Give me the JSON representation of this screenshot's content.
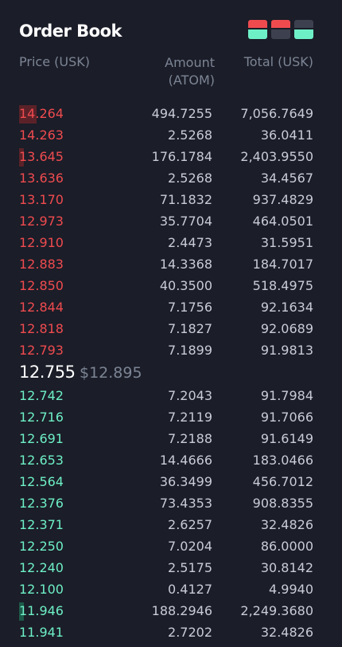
{
  "title": "Order Book",
  "view_toggles": [
    {
      "name": "both-sides",
      "icon": "orderbook-both-icon"
    },
    {
      "name": "asks-only",
      "icon": "orderbook-asks-icon"
    },
    {
      "name": "bids-only",
      "icon": "orderbook-bids-icon"
    }
  ],
  "columns": {
    "price": "Price (USK)",
    "amount": "Amount",
    "amount_unit": "(ATOM)",
    "total": "Total (USK)"
  },
  "colors": {
    "ask": "#ef4b4f",
    "bid": "#6ef0c6",
    "background": "#1b1d28"
  },
  "asks": [
    {
      "price": "14.264",
      "amount": "494.7255",
      "total": "7,056.7649",
      "depth": 0.06
    },
    {
      "price": "14.263",
      "amount": "2.5268",
      "total": "36.0411",
      "depth": 0
    },
    {
      "price": "13.645",
      "amount": "176.1784",
      "total": "2,403.9550",
      "depth": 0.015
    },
    {
      "price": "13.636",
      "amount": "2.5268",
      "total": "34.4567",
      "depth": 0
    },
    {
      "price": "13.170",
      "amount": "71.1832",
      "total": "937.4829",
      "depth": 0
    },
    {
      "price": "12.973",
      "amount": "35.7704",
      "total": "464.0501",
      "depth": 0
    },
    {
      "price": "12.910",
      "amount": "2.4473",
      "total": "31.5951",
      "depth": 0
    },
    {
      "price": "12.883",
      "amount": "14.3368",
      "total": "184.7017",
      "depth": 0
    },
    {
      "price": "12.850",
      "amount": "40.3500",
      "total": "518.4975",
      "depth": 0
    },
    {
      "price": "12.844",
      "amount": "7.1756",
      "total": "92.1634",
      "depth": 0
    },
    {
      "price": "12.818",
      "amount": "7.1827",
      "total": "92.0689",
      "depth": 0
    },
    {
      "price": "12.793",
      "amount": "7.1899",
      "total": "91.9813",
      "depth": 0
    }
  ],
  "last_price": "12.755",
  "last_price_usd": "$12.895",
  "bids": [
    {
      "price": "12.742",
      "amount": "7.2043",
      "total": "91.7984",
      "depth": 0
    },
    {
      "price": "12.716",
      "amount": "7.2119",
      "total": "91.7066",
      "depth": 0
    },
    {
      "price": "12.691",
      "amount": "7.2188",
      "total": "91.6149",
      "depth": 0
    },
    {
      "price": "12.653",
      "amount": "14.4666",
      "total": "183.0466",
      "depth": 0
    },
    {
      "price": "12.564",
      "amount": "36.3499",
      "total": "456.7012",
      "depth": 0
    },
    {
      "price": "12.376",
      "amount": "73.4353",
      "total": "908.8355",
      "depth": 0
    },
    {
      "price": "12.371",
      "amount": "2.6257",
      "total": "32.4826",
      "depth": 0
    },
    {
      "price": "12.250",
      "amount": "7.0204",
      "total": "86.0000",
      "depth": 0
    },
    {
      "price": "12.240",
      "amount": "2.5175",
      "total": "30.8142",
      "depth": 0
    },
    {
      "price": "12.100",
      "amount": "0.4127",
      "total": "4.9940",
      "depth": 0
    },
    {
      "price": "11.946",
      "amount": "188.2946",
      "total": "2,249.3680",
      "depth": 0.015
    },
    {
      "price": "11.941",
      "amount": "2.7202",
      "total": "32.4826",
      "depth": 0
    }
  ]
}
